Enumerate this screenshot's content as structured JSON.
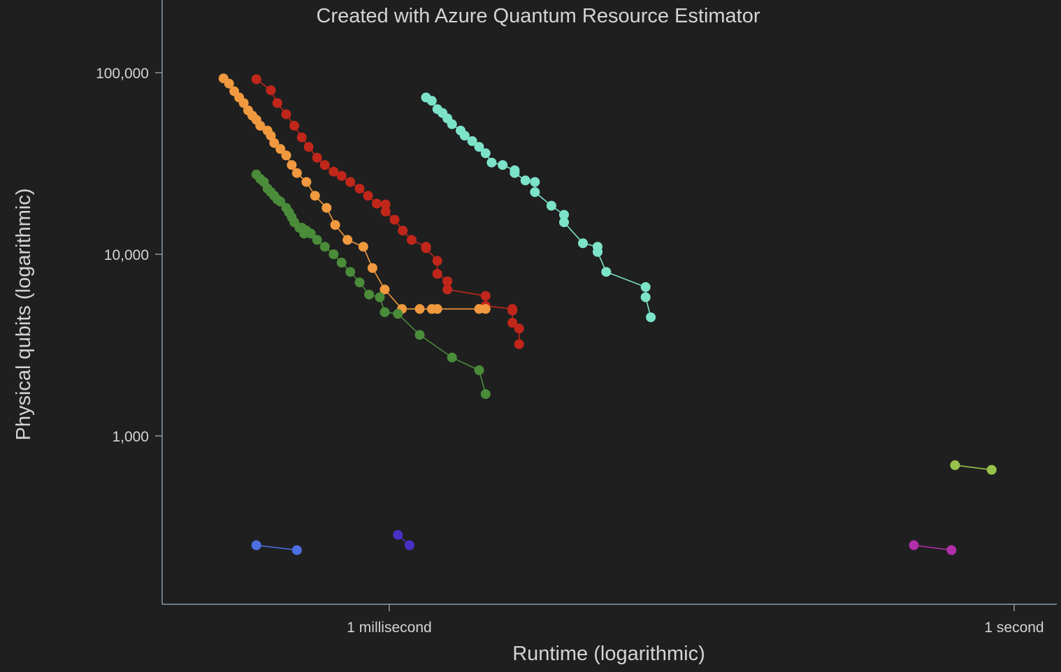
{
  "chart_data": {
    "type": "scatter",
    "title": "Created with Azure Quantum Resource Estimator",
    "xlabel": "Runtime (logarithmic)",
    "ylabel": "Physical qubits (logarithmic)",
    "xscale": "log",
    "yscale": "log",
    "x_unit": "seconds",
    "xlim": [
      5e-05,
      1.5
    ],
    "ylim": [
      150,
      200000
    ],
    "grid": false,
    "legend": "none",
    "x_ticks": [
      {
        "value": 0.001,
        "label": "1 millisecond"
      },
      {
        "value": 1,
        "label": "1 second"
      }
    ],
    "y_ticks": [
      {
        "value": 1000,
        "label": "1,000"
      },
      {
        "value": 10000,
        "label": "10,000"
      },
      {
        "value": 100000,
        "label": "100,000"
      }
    ],
    "series": [
      {
        "color": "#c0271a",
        "x": [
          0.00023,
          0.00027,
          0.00029,
          0.00032,
          0.00035,
          0.00038,
          0.00041,
          0.00045,
          0.00049,
          0.00054,
          0.00059,
          0.00065,
          0.00072,
          0.00079,
          0.00087,
          0.00096,
          0.00096,
          0.00106,
          0.00116,
          0.00128,
          0.0015,
          0.0015,
          0.0017,
          0.0017,
          0.0019,
          0.0019,
          0.0029,
          0.0029,
          0.0039,
          0.0039,
          0.0039,
          0.0042,
          0.0042
        ],
        "y": [
          92000,
          80000,
          68000,
          59000,
          51000,
          44000,
          39000,
          34000,
          31000,
          28500,
          27000,
          25000,
          23000,
          21000,
          19000,
          18800,
          17200,
          15500,
          13500,
          12000,
          11000,
          10800,
          9200,
          7800,
          7100,
          6400,
          5900,
          5200,
          5000,
          4900,
          4200,
          3900,
          3200
        ]
      },
      {
        "color": "#f0993f",
        "x": [
          0.00016,
          0.00017,
          0.00018,
          0.00019,
          0.0002,
          0.00021,
          0.00022,
          0.00023,
          0.00024,
          0.00026,
          0.00027,
          0.00028,
          0.0003,
          0.00032,
          0.00034,
          0.00036,
          0.0004,
          0.00044,
          0.0005,
          0.00055,
          0.00063,
          0.00075,
          0.00083,
          0.00095,
          0.00115,
          0.0014,
          0.0016,
          0.0017,
          0.0027,
          0.0029
        ],
        "y": [
          93000,
          87000,
          79000,
          73000,
          68000,
          62000,
          58000,
          55000,
          51000,
          48000,
          45000,
          41000,
          38000,
          35000,
          31000,
          28000,
          25000,
          21000,
          18000,
          14500,
          12000,
          11000,
          8400,
          6400,
          5000,
          5000,
          5000,
          5000,
          5000,
          5000
        ]
      },
      {
        "color": "#7ce3c9",
        "x": [
          0.0015,
          0.0016,
          0.0017,
          0.0018,
          0.0019,
          0.002,
          0.0022,
          0.0023,
          0.0025,
          0.0027,
          0.0029,
          0.0031,
          0.0035,
          0.004,
          0.004,
          0.0045,
          0.005,
          0.005,
          0.006,
          0.0069,
          0.0069,
          0.0085,
          0.01,
          0.01,
          0.011,
          0.017,
          0.017,
          0.018
        ],
        "y": [
          73000,
          70000,
          63000,
          60000,
          56000,
          52000,
          48000,
          45000,
          42000,
          39000,
          36000,
          32000,
          31000,
          29000,
          28000,
          25500,
          25000,
          22000,
          18500,
          16500,
          15000,
          11500,
          11000,
          10300,
          8000,
          6600,
          5800,
          4500
        ]
      },
      {
        "color": "#4a8c3a",
        "x": [
          0.00023,
          0.00024,
          0.00025,
          0.00026,
          0.00027,
          0.00028,
          0.00029,
          0.0003,
          0.00032,
          0.00033,
          0.00034,
          0.00035,
          0.00037,
          0.00038,
          0.00039,
          0.0004,
          0.00042,
          0.00045,
          0.00049,
          0.00054,
          0.00059,
          0.00065,
          0.00072,
          0.0008,
          0.0009,
          0.00095,
          0.0011,
          0.0014,
          0.002,
          0.0027,
          0.0029
        ],
        "y": [
          27500,
          26000,
          25000,
          23000,
          22000,
          21000,
          20000,
          19500,
          18000,
          17000,
          16000,
          15000,
          14000,
          14000,
          13000,
          13500,
          13000,
          12000,
          11000,
          10000,
          9000,
          8000,
          7000,
          6000,
          5800,
          4800,
          4700,
          3600,
          2700,
          2300,
          1700
        ]
      },
      {
        "color": "#4d6fe0",
        "x": [
          0.00023,
          0.00036
        ],
        "y": [
          250,
          235
        ]
      },
      {
        "color": "#4a2fc4",
        "x": [
          0.0011,
          0.00125
        ],
        "y": [
          285,
          250
        ]
      },
      {
        "color": "#b22eab",
        "x": [
          0.33,
          0.5
        ],
        "y": [
          250,
          235
        ]
      },
      {
        "color": "#97c24b",
        "x": [
          0.52,
          0.78
        ],
        "y": [
          690,
          650
        ]
      }
    ]
  }
}
